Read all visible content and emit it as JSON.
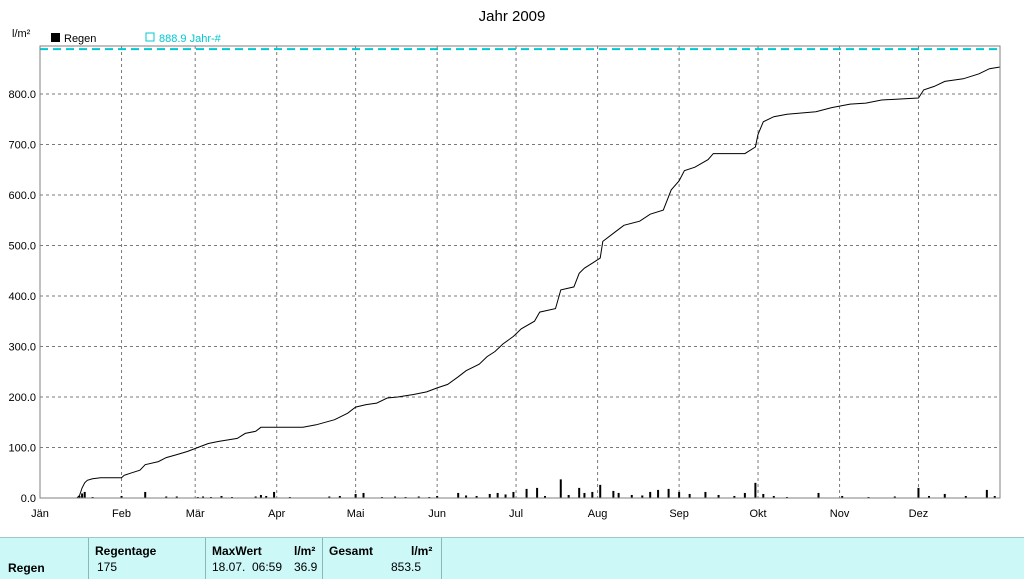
{
  "chart_data": {
    "type": "line",
    "title": "Jahr 2009",
    "ylabel": "l/m²",
    "ylim": [
      0,
      895
    ],
    "yticks": [
      0,
      100,
      200,
      300,
      400,
      500,
      600,
      700,
      800
    ],
    "ytick_labels": [
      "0.0",
      "100.0",
      "200.0",
      "300.0",
      "400.0",
      "500.0",
      "600.0",
      "700.0",
      "800.0"
    ],
    "month_labels": [
      "Jän",
      "Feb",
      "Mär",
      "Apr",
      "Mai",
      "Jun",
      "Jul",
      "Aug",
      "Sep",
      "Okt",
      "Nov",
      "Dez"
    ],
    "month_start_days": [
      0,
      31,
      59,
      90,
      120,
      151,
      181,
      212,
      243,
      273,
      304,
      334
    ],
    "days_in_year": 365,
    "grid": true,
    "legend": [
      {
        "label": "Regen",
        "color": "#000000",
        "marker": "filled-square"
      },
      {
        "label": "888.9 Jahr-#",
        "color": "#00c8d2",
        "marker": "open-square"
      }
    ],
    "reference_line": {
      "label": "888.9 Jahr-#",
      "value": 888.9,
      "color": "#00c8d2",
      "style": "dashed"
    },
    "series": [
      {
        "name": "Regen",
        "kind": "cumulative-line",
        "color": "#000000",
        "points": [
          [
            0,
            0
          ],
          [
            14,
            0
          ],
          [
            15,
            5
          ],
          [
            16,
            20
          ],
          [
            17,
            30
          ],
          [
            18,
            35
          ],
          [
            20,
            38
          ],
          [
            23,
            40
          ],
          [
            31,
            40
          ],
          [
            32,
            45
          ],
          [
            35,
            50
          ],
          [
            38,
            55
          ],
          [
            40,
            66
          ],
          [
            45,
            72
          ],
          [
            48,
            80
          ],
          [
            52,
            86
          ],
          [
            56,
            92
          ],
          [
            60,
            100
          ],
          [
            64,
            108
          ],
          [
            68,
            112
          ],
          [
            75,
            118
          ],
          [
            78,
            128
          ],
          [
            82,
            132
          ],
          [
            84,
            140
          ],
          [
            100,
            140
          ],
          [
            105,
            145
          ],
          [
            112,
            155
          ],
          [
            117,
            168
          ],
          [
            120,
            180
          ],
          [
            124,
            185
          ],
          [
            128,
            188
          ],
          [
            132,
            198
          ],
          [
            136,
            200
          ],
          [
            142,
            205
          ],
          [
            147,
            210
          ],
          [
            151,
            218
          ],
          [
            155,
            225
          ],
          [
            159,
            240
          ],
          [
            162,
            252
          ],
          [
            167,
            265
          ],
          [
            170,
            280
          ],
          [
            173,
            290
          ],
          [
            176,
            305
          ],
          [
            180,
            320
          ],
          [
            183,
            335
          ],
          [
            188,
            350
          ],
          [
            190,
            368
          ],
          [
            196,
            375
          ],
          [
            198,
            412
          ],
          [
            203,
            418
          ],
          [
            205,
            445
          ],
          [
            207,
            455
          ],
          [
            210,
            465
          ],
          [
            213,
            475
          ],
          [
            214,
            508
          ],
          [
            219,
            528
          ],
          [
            222,
            540
          ],
          [
            228,
            548
          ],
          [
            232,
            562
          ],
          [
            237,
            570
          ],
          [
            240,
            610
          ],
          [
            243,
            628
          ],
          [
            245,
            648
          ],
          [
            249,
            655
          ],
          [
            254,
            670
          ],
          [
            256,
            682
          ],
          [
            268,
            682
          ],
          [
            272,
            695
          ],
          [
            273,
            720
          ],
          [
            275,
            745
          ],
          [
            279,
            755
          ],
          [
            284,
            760
          ],
          [
            295,
            765
          ],
          [
            301,
            773
          ],
          [
            308,
            780
          ],
          [
            314,
            782
          ],
          [
            320,
            788
          ],
          [
            334,
            792
          ],
          [
            336,
            808
          ],
          [
            340,
            815
          ],
          [
            344,
            825
          ],
          [
            351,
            830
          ],
          [
            357,
            840
          ],
          [
            361,
            850
          ],
          [
            365,
            853.5
          ]
        ]
      },
      {
        "name": "Regen",
        "kind": "daily-bars",
        "color": "#000000",
        "bars": [
          [
            15,
            4
          ],
          [
            16,
            9
          ],
          [
            17,
            12
          ],
          [
            20,
            2
          ],
          [
            31,
            4
          ],
          [
            40,
            12
          ],
          [
            48,
            3
          ],
          [
            52,
            3
          ],
          [
            60,
            2
          ],
          [
            62,
            3
          ],
          [
            65,
            2
          ],
          [
            69,
            4
          ],
          [
            73,
            2
          ],
          [
            82,
            3
          ],
          [
            84,
            6
          ],
          [
            86,
            4
          ],
          [
            89,
            12
          ],
          [
            95,
            2
          ],
          [
            110,
            3
          ],
          [
            114,
            4
          ],
          [
            120,
            8
          ],
          [
            123,
            10
          ],
          [
            130,
            2
          ],
          [
            135,
            3
          ],
          [
            139,
            2
          ],
          [
            144,
            3
          ],
          [
            148,
            2
          ],
          [
            151,
            4
          ],
          [
            159,
            10
          ],
          [
            162,
            5
          ],
          [
            166,
            4
          ],
          [
            171,
            8
          ],
          [
            174,
            10
          ],
          [
            177,
            7
          ],
          [
            180,
            12
          ],
          [
            185,
            18
          ],
          [
            189,
            20
          ],
          [
            192,
            4
          ],
          [
            198,
            36.9
          ],
          [
            201,
            6
          ],
          [
            205,
            20
          ],
          [
            207,
            10
          ],
          [
            210,
            12
          ],
          [
            213,
            26
          ],
          [
            218,
            14
          ],
          [
            220,
            10
          ],
          [
            225,
            6
          ],
          [
            229,
            5
          ],
          [
            232,
            12
          ],
          [
            235,
            16
          ],
          [
            239,
            18
          ],
          [
            243,
            12
          ],
          [
            247,
            8
          ],
          [
            253,
            12
          ],
          [
            258,
            6
          ],
          [
            264,
            4
          ],
          [
            268,
            10
          ],
          [
            272,
            30
          ],
          [
            275,
            8
          ],
          [
            279,
            4
          ],
          [
            284,
            2
          ],
          [
            296,
            10
          ],
          [
            305,
            4
          ],
          [
            315,
            2
          ],
          [
            325,
            3
          ],
          [
            334,
            20
          ],
          [
            338,
            4
          ],
          [
            344,
            8
          ],
          [
            352,
            4
          ],
          [
            360,
            16
          ],
          [
            363,
            4
          ]
        ]
      }
    ]
  },
  "stats_panel": {
    "row_label": "Regen",
    "columns": {
      "regentage_header": "Regentage",
      "regentage_value": "175",
      "maxwert_header": "MaxWert",
      "maxwert_unit": "l/m²",
      "maxwert_date": "18.07.",
      "maxwert_time": "06:59",
      "maxwert_value": "36.9",
      "gesamt_header": "Gesamt",
      "gesamt_unit": "l/m²",
      "gesamt_value": "853.5"
    }
  }
}
